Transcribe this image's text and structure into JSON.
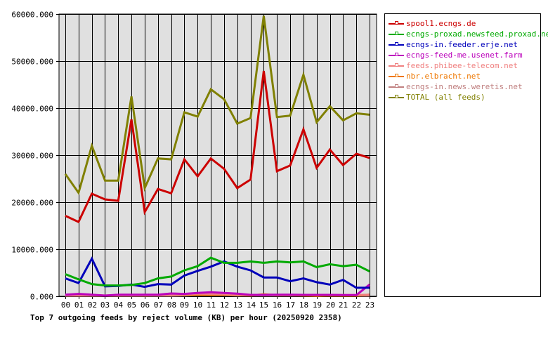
{
  "chart_data": {
    "type": "line",
    "title": "Top 7 outgoing feeds by reject volume (KB) per hour (20250920 2358)",
    "xlabel": "",
    "ylabel": "",
    "categories": [
      "00",
      "01",
      "02",
      "03",
      "04",
      "05",
      "06",
      "07",
      "08",
      "09",
      "10",
      "11",
      "12",
      "13",
      "14",
      "15",
      "16",
      "17",
      "18",
      "19",
      "20",
      "21",
      "22",
      "23"
    ],
    "ylim": [
      0,
      60000
    ],
    "yticks": [
      "0.000",
      "10000.000",
      "20000.000",
      "30000.000",
      "40000.000",
      "50000.000",
      "60000.000"
    ],
    "grid": true,
    "legend_position": "right",
    "series": [
      {
        "name": "spool1.ecngs.de",
        "color": "#cc0000",
        "values": [
          17100,
          15800,
          21800,
          20600,
          20300,
          37600,
          17900,
          22800,
          21900,
          29100,
          25500,
          29300,
          27100,
          23000,
          24800,
          47900,
          26600,
          27800,
          35500,
          27300,
          31200,
          27900,
          30300,
          29400
        ]
      },
      {
        "name": "ecngs-proxad.newsfeed.proxad.net",
        "color": "#00aa00",
        "values": [
          4700,
          3600,
          2600,
          2300,
          2300,
          2400,
          2800,
          3800,
          4200,
          5500,
          6400,
          8200,
          7100,
          7100,
          7400,
          7100,
          7400,
          7200,
          7400,
          6200,
          6800,
          6400,
          6700,
          5300
        ]
      },
      {
        "name": "ecngs-in.feeder.erje.net",
        "color": "#0000bb",
        "values": [
          3800,
          2800,
          8000,
          2100,
          2200,
          2500,
          2000,
          2600,
          2500,
          4400,
          5400,
          6300,
          7400,
          6300,
          5500,
          4000,
          4000,
          3200,
          3800,
          3000,
          2500,
          3500,
          1800,
          1800
        ]
      },
      {
        "name": "ecngs-feed-me.usenet.farm",
        "color": "#bb00bb",
        "values": [
          350,
          500,
          350,
          150,
          350,
          350,
          350,
          350,
          600,
          500,
          700,
          850,
          700,
          550,
          300,
          300,
          350,
          350,
          300,
          300,
          300,
          250,
          250,
          2500
        ]
      },
      {
        "name": "feeds.phibee-telecom.net",
        "color": "#f08080",
        "values": [
          200,
          200,
          200,
          150,
          200,
          200,
          200,
          250,
          300,
          400,
          550,
          500,
          450,
          350,
          300,
          300,
          300,
          300,
          300,
          250,
          300,
          250,
          250,
          350
        ]
      },
      {
        "name": "nbr.elbracht.net",
        "color": "#ee7700",
        "values": [
          250,
          250,
          250,
          150,
          250,
          250,
          200,
          250,
          300,
          350,
          350,
          300,
          300,
          250,
          200,
          400,
          250,
          250,
          200,
          100,
          200,
          150,
          150,
          350
        ]
      },
      {
        "name": "ecngs-in.news.weretis.net",
        "color": "#c08080",
        "values": [
          150,
          150,
          150,
          150,
          150,
          150,
          150,
          150,
          150,
          200,
          250,
          250,
          250,
          200,
          200,
          200,
          200,
          200,
          200,
          200,
          200,
          150,
          150,
          150
        ]
      },
      {
        "name": "TOTAL (all feeds)",
        "color": "#808000",
        "values": [
          26000,
          22000,
          32000,
          24600,
          24600,
          42500,
          23000,
          29300,
          29100,
          39100,
          38200,
          44000,
          41900,
          36700,
          37900,
          59600,
          38100,
          38400,
          47100,
          37000,
          40400,
          37400,
          38900,
          38600
        ]
      }
    ]
  }
}
